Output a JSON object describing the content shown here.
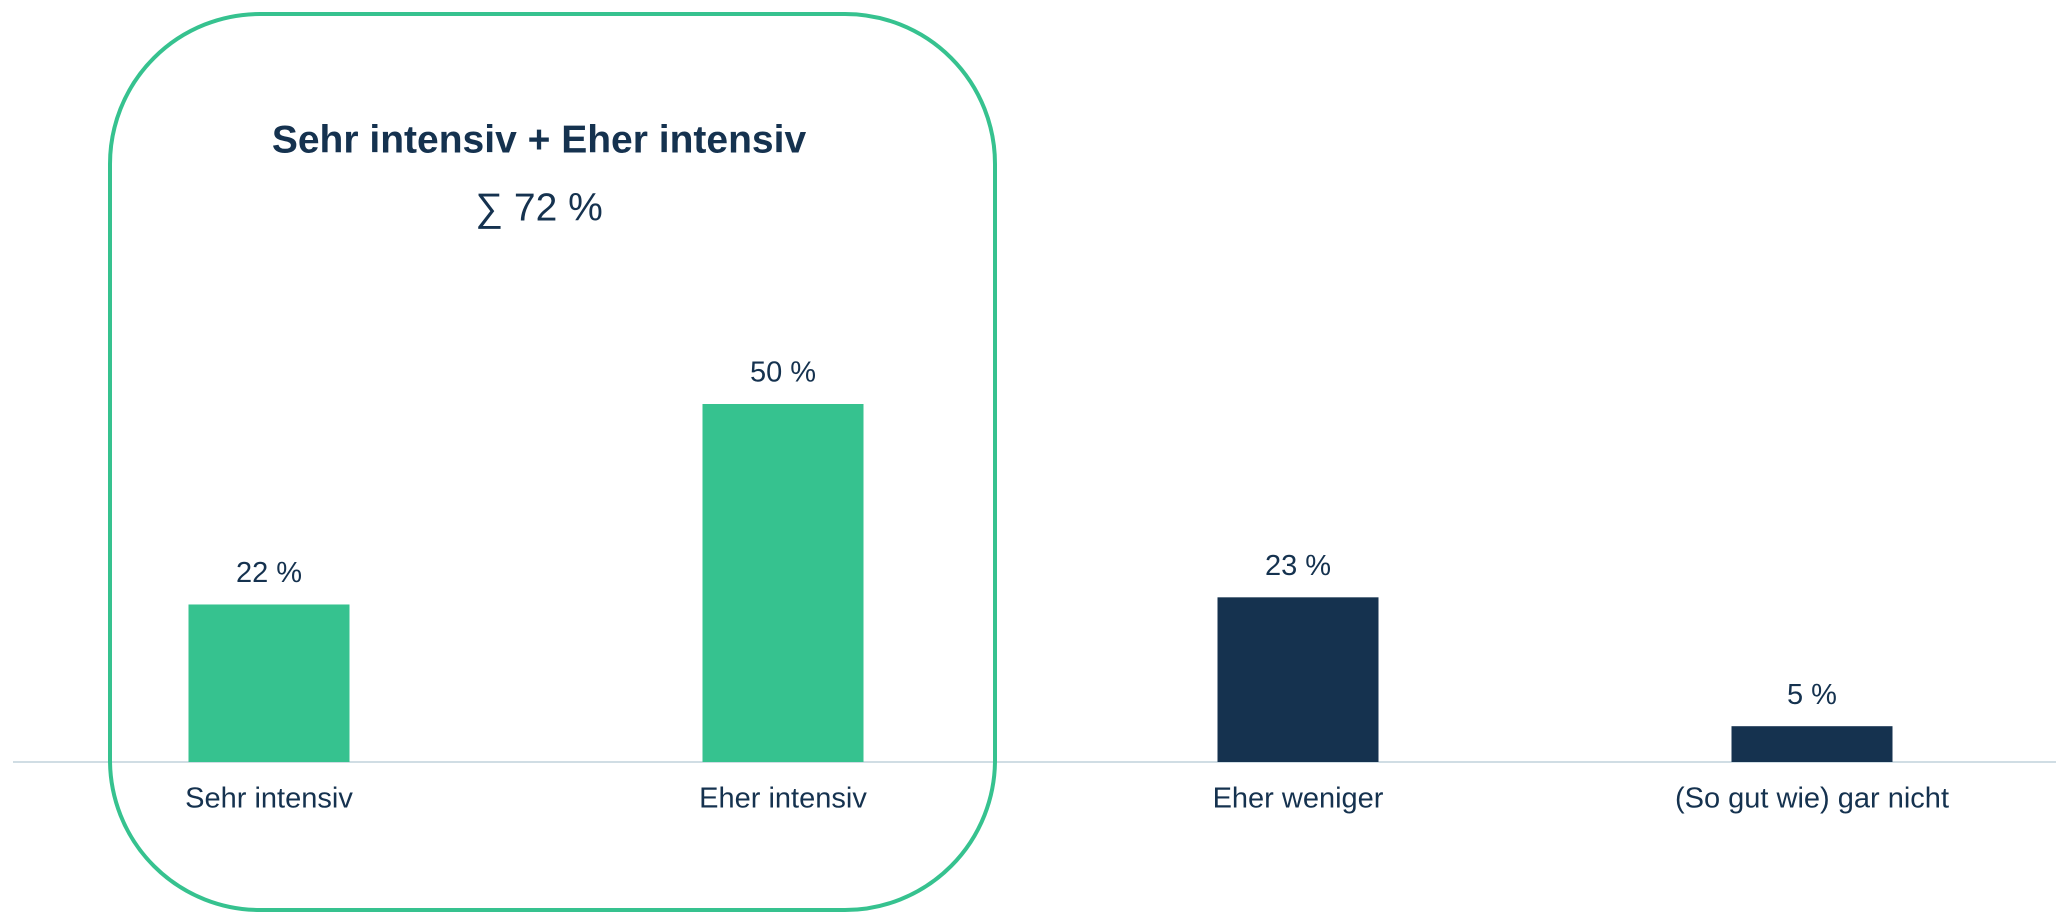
{
  "chart_data": {
    "type": "bar",
    "categories": [
      "Sehr intensiv",
      "Eher intensiv",
      "Eher weniger",
      "(So gut wie) gar nicht"
    ],
    "values": [
      22,
      50,
      23,
      5
    ],
    "value_labels": [
      "22 %",
      "50 %",
      "23 %",
      "5 %"
    ],
    "colors": [
      "#36c28f",
      "#36c28f",
      "#15324f",
      "#15324f"
    ],
    "annotation": {
      "title": "Sehr intensiv + Eher intensiv",
      "text": "∑ 72 %"
    }
  }
}
